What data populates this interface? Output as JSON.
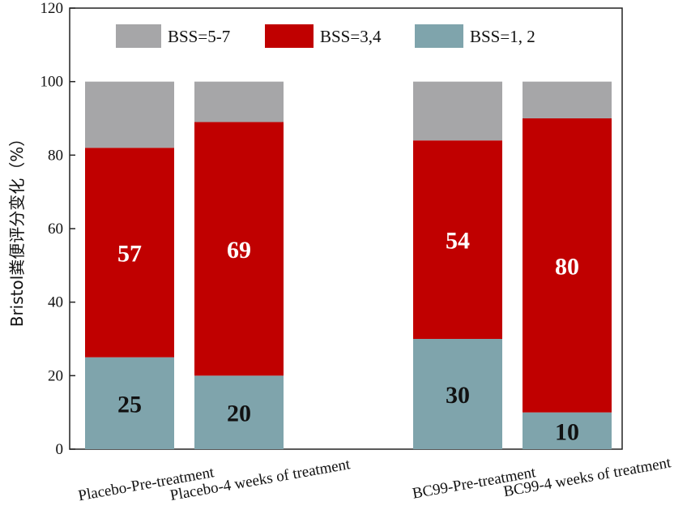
{
  "chart_data": {
    "type": "bar",
    "stacked": true,
    "ylabel": "Bristol粪便评分变化（%）",
    "ylim": [
      0,
      120
    ],
    "yticks": [
      0,
      20,
      40,
      60,
      80,
      100,
      120
    ],
    "categories": [
      "Placebo-Pre-treatment",
      "Placebo-4  weeks of treatment",
      "BC99-Pre-treatment",
      "BC99-4  weeks of treatment"
    ],
    "series": [
      {
        "name": "BSS=1, 2",
        "color": "#7fa4ac",
        "label_color": "#111111",
        "values": [
          25,
          20,
          30,
          10
        ]
      },
      {
        "name": "BSS=3,4",
        "color": "#c00000",
        "label_color": "#ffffff",
        "values": [
          57,
          69,
          54,
          80
        ]
      },
      {
        "name": "BSS=5-7",
        "color": "#a6a6a8",
        "label_color": "#111111",
        "values": [
          18,
          11,
          16,
          10
        ]
      }
    ],
    "data_labels": [
      {
        "series": 0,
        "labels": [
          "25",
          "20",
          "30",
          "10"
        ]
      },
      {
        "series": 1,
        "labels": [
          "57",
          "69",
          "54",
          "80"
        ]
      }
    ],
    "legend": {
      "placement": "top",
      "order": [
        2,
        1,
        0
      ]
    },
    "grid": false
  }
}
